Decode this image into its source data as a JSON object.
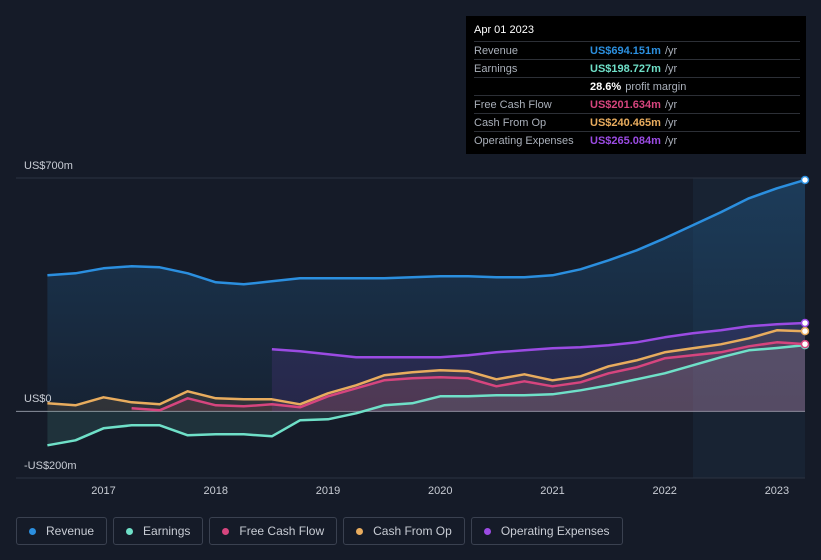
{
  "chart_data": {
    "type": "line",
    "x": [
      2016.5,
      2016.75,
      2017,
      2017.25,
      2017.5,
      2017.75,
      2018,
      2018.25,
      2018.5,
      2018.75,
      2019,
      2019.25,
      2019.5,
      2019.75,
      2020,
      2020.25,
      2020.5,
      2020.75,
      2021,
      2021.25,
      2021.5,
      2021.75,
      2022,
      2022.25,
      2022.5,
      2022.75,
      2023,
      2023.25
    ],
    "series": [
      {
        "name": "Revenue",
        "color": "#2b8fdf",
        "values": [
          408,
          414,
          429,
          435,
          432,
          414,
          387,
          381,
          390,
          399,
          399,
          399,
          399,
          402,
          405,
          405,
          402,
          402,
          408,
          426,
          453,
          483,
          519,
          558,
          597,
          639,
          669,
          694.151
        ]
      },
      {
        "name": "Earnings",
        "color": "#6fe0c8",
        "values": [
          -102,
          -87,
          -51,
          -42,
          -42,
          -72,
          -69,
          -69,
          -75,
          -27,
          -24,
          -6,
          18,
          24,
          45,
          45,
          48,
          48,
          51,
          63,
          78,
          96,
          114,
          138,
          162,
          183,
          190,
          198.727
        ]
      },
      {
        "name": "Free Cash Flow",
        "color": "#d6457e",
        "values": [
          null,
          null,
          null,
          9,
          3,
          39,
          18,
          15,
          21,
          12,
          45,
          69,
          93,
          99,
          102,
          99,
          75,
          90,
          75,
          87,
          114,
          132,
          159,
          168,
          177,
          195,
          207,
          201.634
        ]
      },
      {
        "name": "Cash From Op",
        "color": "#e8ac5e",
        "values": [
          24,
          18,
          42,
          27,
          21,
          60,
          39,
          36,
          36,
          21,
          54,
          78,
          108,
          117,
          123,
          120,
          96,
          111,
          93,
          105,
          135,
          153,
          177,
          189,
          201,
          219,
          243,
          240.465
        ]
      },
      {
        "name": "Operating Expenses",
        "color": "#9b4be3",
        "values": [
          null,
          null,
          null,
          null,
          null,
          null,
          null,
          null,
          186,
          180,
          171,
          162,
          162,
          162,
          162,
          168,
          177,
          183,
          189,
          192,
          198,
          207,
          222,
          234,
          243,
          255,
          261,
          265.084
        ]
      }
    ],
    "xlim": [
      2016.22,
      2023.25
    ],
    "xticks": [
      2017,
      2018,
      2019,
      2020,
      2021,
      2022,
      2023
    ],
    "ylim": [
      -200,
      700
    ],
    "yticks": [
      {
        "value": -200,
        "label": "-US$200m"
      },
      {
        "value": 0,
        "label": "US$0"
      },
      {
        "value": 700,
        "label": "US$700m"
      }
    ]
  },
  "tooltip": {
    "date": "Apr 01 2023",
    "rows": [
      {
        "label": "Revenue",
        "value": "US$694.151m",
        "unit": "/yr",
        "color": "#2b8fdf"
      },
      {
        "label": "Earnings",
        "value": "US$198.727m",
        "unit": "/yr",
        "color": "#6fe0c8"
      },
      {
        "value": "28.6%",
        "unit": "profit margin",
        "color": "#ffffff"
      },
      {
        "label": "Free Cash Flow",
        "value": "US$201.634m",
        "unit": "/yr",
        "color": "#d6457e"
      },
      {
        "label": "Cash From Op",
        "value": "US$240.465m",
        "unit": "/yr",
        "color": "#e8ac5e"
      },
      {
        "label": "Operating Expenses",
        "value": "US$265.084m",
        "unit": "/yr",
        "color": "#9b4be3"
      }
    ]
  }
}
